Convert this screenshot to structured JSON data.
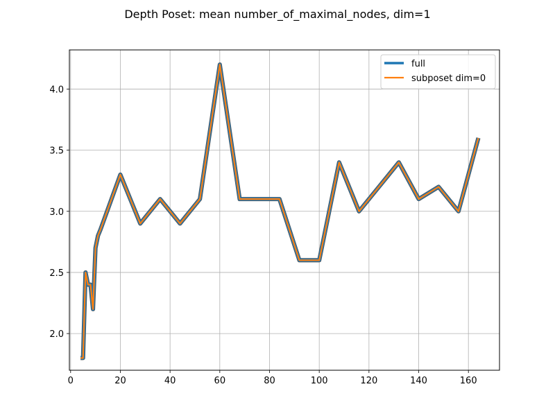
{
  "chart_data": {
    "type": "line",
    "title": "Depth Poset: mean number_of_maximal_nodes, dim=1",
    "xlabel": "",
    "ylabel": "",
    "xlim": [
      -0.5,
      172.5
    ],
    "ylim": [
      1.7,
      4.32
    ],
    "xticks": [
      0,
      20,
      40,
      60,
      80,
      100,
      120,
      140,
      160
    ],
    "yticks": [
      2.0,
      2.5,
      3.0,
      3.5,
      4.0
    ],
    "ytick_labels": [
      "2.0",
      "2.5",
      "3.0",
      "3.5",
      "4.0"
    ],
    "grid": true,
    "legend_position": "top-right",
    "x": [
      4,
      5,
      6,
      7,
      8,
      9,
      10,
      11,
      12,
      20,
      28,
      36,
      44,
      52,
      60,
      68,
      76,
      84,
      92,
      100,
      108,
      116,
      124,
      132,
      140,
      148,
      156,
      164
    ],
    "series": [
      {
        "name": "full",
        "color": "#1f77b4",
        "values": [
          1.8,
          1.8,
          2.5,
          2.4,
          2.4,
          2.2,
          2.7,
          2.8,
          2.85,
          3.3,
          2.9,
          3.1,
          2.9,
          3.1,
          4.2,
          3.1,
          3.1,
          3.1,
          2.6,
          2.6,
          3.4,
          3.0,
          3.2,
          3.4,
          3.1,
          3.2,
          3.0,
          3.6
        ]
      },
      {
        "name": "subposet dim=0",
        "color": "#ff7f0e",
        "values": [
          1.8,
          1.8,
          2.5,
          2.4,
          2.4,
          2.2,
          2.7,
          2.8,
          2.85,
          3.3,
          2.9,
          3.1,
          2.9,
          3.1,
          4.2,
          3.1,
          3.1,
          3.1,
          2.6,
          2.6,
          3.4,
          3.0,
          3.2,
          3.4,
          3.1,
          3.2,
          3.0,
          3.6
        ]
      }
    ]
  }
}
